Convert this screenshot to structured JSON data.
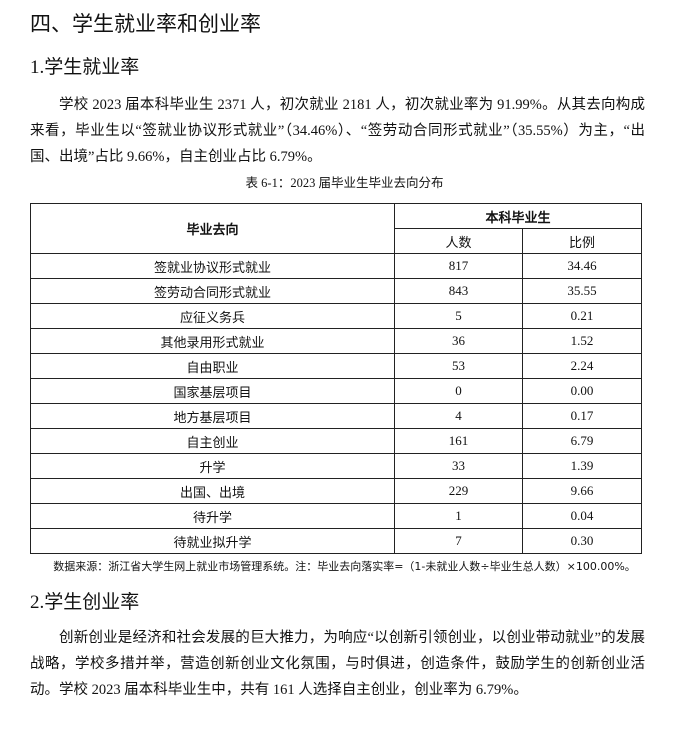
{
  "section_title": "四、学生就业率和创业率",
  "sub1": {
    "title": "1.学生就业率",
    "paragraph": "学校 2023 届本科毕业生 2371 人，初次就业 2181 人，初次就业率为 91.99%。从其去向构成来看，毕业生以“签就业协议形式就业”（34.46%）、“签劳动合同形式就业”（35.55%）为主，“出国、出境”占比 9.66%，自主创业占比 6.79%。"
  },
  "table": {
    "caption": "表 6-1：2023 届毕业生毕业去向分布",
    "header_col": "毕业去向",
    "header_group": "本科毕业生",
    "header_count": "人数",
    "header_ratio": "比例",
    "rows": [
      {
        "name": "签就业协议形式就业",
        "count": "817",
        "ratio": "34.46"
      },
      {
        "name": "签劳动合同形式就业",
        "count": "843",
        "ratio": "35.55"
      },
      {
        "name": "应征义务兵",
        "count": "5",
        "ratio": "0.21"
      },
      {
        "name": "其他录用形式就业",
        "count": "36",
        "ratio": "1.52"
      },
      {
        "name": "自由职业",
        "count": "53",
        "ratio": "2.24"
      },
      {
        "name": "国家基层项目",
        "count": "0",
        "ratio": "0.00"
      },
      {
        "name": "地方基层项目",
        "count": "4",
        "ratio": "0.17"
      },
      {
        "name": "自主创业",
        "count": "161",
        "ratio": "6.79"
      },
      {
        "name": "升学",
        "count": "33",
        "ratio": "1.39"
      },
      {
        "name": "出国、出境",
        "count": "229",
        "ratio": "9.66"
      },
      {
        "name": "待升学",
        "count": "1",
        "ratio": "0.04"
      },
      {
        "name": "待就业拟升学",
        "count": "7",
        "ratio": "0.30"
      }
    ],
    "note": "数据来源：浙江省大学生网上就业市场管理系统。注：毕业去向落实率=（1-未就业人数÷毕业生总人数）×100.00%。"
  },
  "sub2": {
    "title": "2.学生创业率",
    "paragraph": "创新创业是经济和社会发展的巨大推力，为响应“以创新引领创业，以创业带动就业”的发展战略，学校多措并举，营造创新创业文化氛围，与时俱进，创造条件，鼓励学生的创新创业活动。学校 2023 届本科毕业生中，共有 161 人选择自主创业，创业率为 6.79%。"
  }
}
